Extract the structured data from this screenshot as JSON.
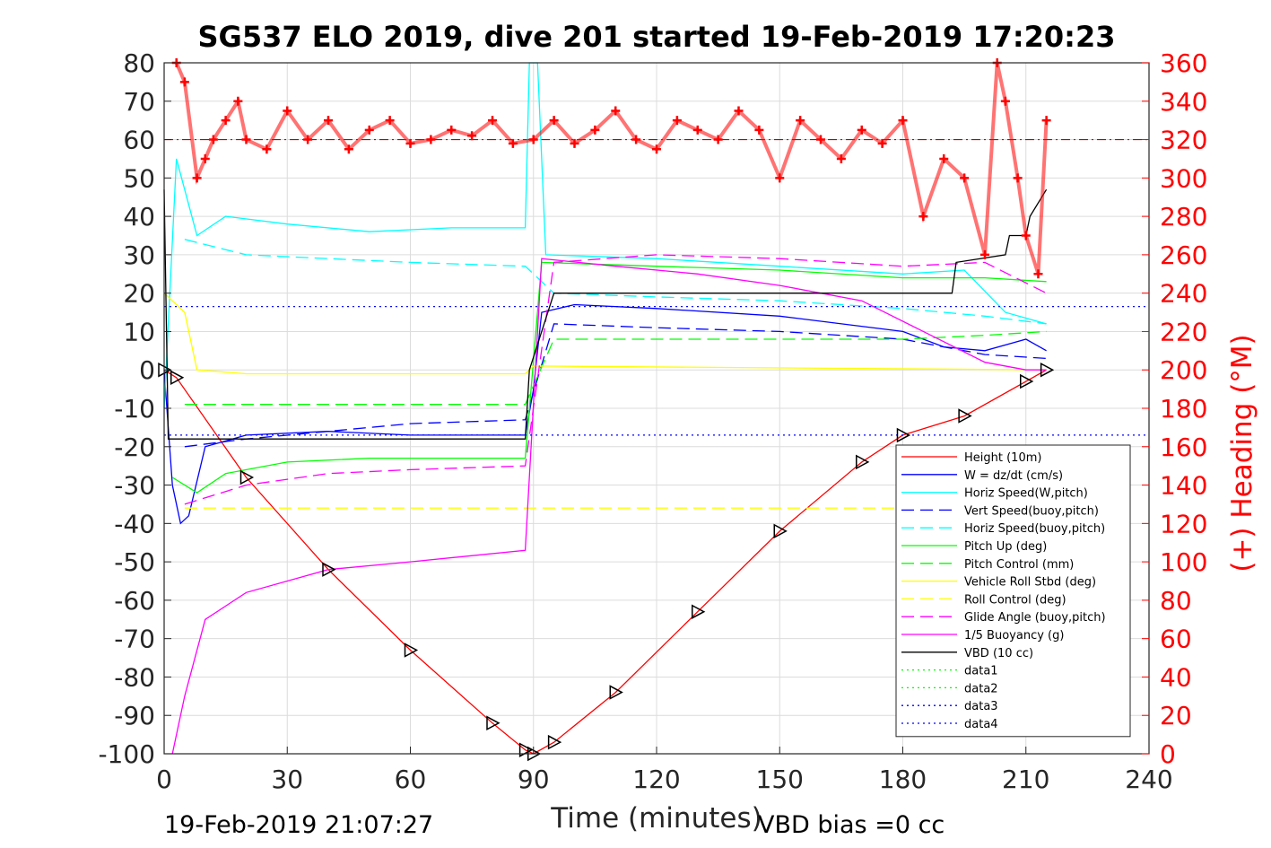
{
  "chart_data": {
    "type": "line",
    "title": "SG537 ELO 2019, dive 201 started 19-Feb-2019 17:20:23",
    "xlabel": "Time (minutes)",
    "ylabel_right": "(+) Heading (°M)",
    "xlim": [
      0,
      240
    ],
    "ylim": [
      -100,
      80
    ],
    "ylim_right": [
      0,
      360
    ],
    "x_ticks": [
      "0",
      "30",
      "60",
      "90",
      "120",
      "150",
      "180",
      "210",
      "240"
    ],
    "y_ticks": [
      "80",
      "70",
      "60",
      "50",
      "40",
      "30",
      "20",
      "10",
      "0",
      "-10",
      "-20",
      "-30",
      "-40",
      "-50",
      "-60",
      "-70",
      "-80",
      "-90",
      "-100"
    ],
    "y_ticks_right": [
      "360",
      "340",
      "320",
      "300",
      "280",
      "260",
      "240",
      "220",
      "200",
      "180",
      "160",
      "140",
      "120",
      "100",
      "80",
      "60",
      "40",
      "20",
      "0"
    ],
    "grid": true,
    "legend_position": "lower-right",
    "footer_left": "19-Feb-2019 21:07:27",
    "footer_right": "VBD bias =0 cc",
    "series": [
      {
        "name": "Height (10m)",
        "color": "#ff0000",
        "style": "solid",
        "x": [
          0,
          3,
          20,
          40,
          60,
          80,
          88,
          90,
          95,
          110,
          130,
          150,
          170,
          180,
          195,
          210,
          215
        ],
        "y": [
          0,
          -2,
          -28,
          -52,
          -73,
          -92,
          -99,
          -100,
          -97,
          -84,
          -63,
          -42,
          -24,
          -17,
          -12,
          -3,
          0
        ]
      },
      {
        "name": "W = dz/dt (cm/s)",
        "color": "#0000ff",
        "style": "solid",
        "x": [
          0,
          2,
          4,
          6,
          10,
          20,
          40,
          60,
          88,
          90,
          92,
          100,
          120,
          150,
          180,
          190,
          200,
          210,
          215
        ],
        "y": [
          0,
          -30,
          -40,
          -38,
          -20,
          -17,
          -16,
          -17,
          -17,
          -5,
          15,
          17,
          16,
          14,
          10,
          6,
          5,
          8,
          5
        ]
      },
      {
        "name": "Horiz Speed(W,pitch)",
        "color": "#00ffff",
        "style": "solid",
        "x": [
          0,
          3,
          8,
          15,
          30,
          50,
          70,
          88,
          89,
          91,
          93,
          120,
          150,
          180,
          195,
          205,
          215
        ],
        "y": [
          -10,
          55,
          35,
          40,
          38,
          36,
          37,
          37,
          80,
          80,
          30,
          29,
          27,
          25,
          26,
          15,
          12
        ]
      },
      {
        "name": "Vert Speed(buoy,pitch)",
        "color": "#0000ff",
        "style": "dashed",
        "x": [
          5,
          20,
          40,
          60,
          88,
          95,
          120,
          150,
          180,
          190,
          200,
          215
        ],
        "y": [
          -20,
          -18,
          -16,
          -14,
          -13,
          12,
          11,
          10,
          8,
          6,
          4,
          3
        ]
      },
      {
        "name": "Horiz Speed(buoy,pitch)",
        "color": "#00ffff",
        "style": "dashed",
        "x": [
          5,
          20,
          40,
          60,
          88,
          95,
          120,
          150,
          180,
          200,
          215
        ],
        "y": [
          34,
          30,
          29,
          28,
          27,
          20,
          19,
          18,
          16,
          14,
          12
        ]
      },
      {
        "name": "Pitch Up (deg)",
        "color": "#00ff00",
        "style": "solid",
        "x": [
          2,
          8,
          15,
          30,
          50,
          88,
          92,
          120,
          150,
          180,
          200,
          215
        ],
        "y": [
          -28,
          -32,
          -27,
          -24,
          -23,
          -23,
          28,
          27,
          26,
          24,
          24,
          23
        ]
      },
      {
        "name": "Pitch Control (mm)",
        "color": "#00ff00",
        "style": "dashed",
        "x": [
          5,
          88,
          95,
          180,
          200,
          215
        ],
        "y": [
          -9,
          -9,
          8,
          8,
          9,
          10
        ]
      },
      {
        "name": "Vehicle Roll Stbd (deg)",
        "color": "#ffff00",
        "style": "solid",
        "x": [
          0,
          5,
          8,
          20,
          88,
          90,
          215
        ],
        "y": [
          20,
          15,
          0,
          -1,
          -1,
          1,
          0
        ]
      },
      {
        "name": "Roll Control (deg)",
        "color": "#ffff00",
        "style": "dashed",
        "x": [
          5,
          88,
          215
        ],
        "y": [
          -36,
          -36,
          -36
        ]
      },
      {
        "name": "Glide Angle (buoy,pitch)",
        "color": "#ff00ff",
        "style": "dashed",
        "x": [
          5,
          20,
          40,
          60,
          88,
          95,
          120,
          150,
          180,
          200,
          215
        ],
        "y": [
          -35,
          -30,
          -27,
          -26,
          -25,
          28,
          30,
          29,
          27,
          28,
          20
        ]
      },
      {
        "name": "1/5 Buoyancy (g)",
        "color": "#ff00ff",
        "style": "solid",
        "x": [
          2,
          5,
          10,
          20,
          40,
          60,
          88,
          92,
          110,
          130,
          150,
          170,
          185,
          200,
          210,
          215
        ],
        "y": [
          -100,
          -85,
          -65,
          -58,
          -52,
          -50,
          -47,
          29,
          27,
          25,
          22,
          18,
          10,
          2,
          0,
          0
        ]
      },
      {
        "name": "VBD (10 cc)",
        "color": "#000000",
        "style": "solid",
        "x": [
          0,
          1,
          88,
          89,
          95,
          192,
          193,
          205,
          206,
          210,
          211,
          215
        ],
        "y": [
          47,
          -18,
          -18,
          0,
          20,
          20,
          28,
          30,
          35,
          35,
          40,
          47
        ]
      },
      {
        "name": "data1",
        "color": "#00ff00",
        "style": "dotted",
        "x": [],
        "y": []
      },
      {
        "name": "data2",
        "color": "#00ff00",
        "style": "dotted",
        "x": [],
        "y": []
      },
      {
        "name": "data3",
        "color": "#0000ff",
        "style": "dotted",
        "x": [
          0,
          240
        ],
        "y": [
          16.5,
          16.5
        ]
      },
      {
        "name": "data4",
        "color": "#0000ff",
        "style": "dotted",
        "x": [
          0,
          240
        ],
        "y": [
          -17,
          -17
        ]
      }
    ],
    "heading_series": {
      "name": "Heading",
      "color": "#ff0000",
      "marker": "+",
      "axis": "right",
      "x": [
        3,
        5,
        8,
        10,
        12,
        15,
        18,
        20,
        25,
        30,
        35,
        40,
        45,
        50,
        55,
        60,
        65,
        70,
        75,
        80,
        85,
        90,
        95,
        100,
        105,
        110,
        115,
        120,
        125,
        130,
        135,
        140,
        145,
        150,
        155,
        160,
        165,
        170,
        175,
        180,
        185,
        190,
        195,
        200,
        203,
        205,
        208,
        210,
        213,
        215
      ],
      "y": [
        360,
        350,
        300,
        310,
        320,
        330,
        340,
        320,
        315,
        335,
        320,
        330,
        315,
        325,
        330,
        318,
        320,
        325,
        322,
        330,
        318,
        320,
        330,
        318,
        325,
        335,
        320,
        315,
        330,
        325,
        320,
        335,
        325,
        300,
        330,
        320,
        310,
        325,
        318,
        330,
        280,
        310,
        300,
        260,
        360,
        340,
        300,
        270,
        250,
        330
      ]
    },
    "reference_lines": [
      {
        "axis": "right",
        "y": 320,
        "color": "#c00000",
        "style": "dash-dot"
      }
    ]
  }
}
